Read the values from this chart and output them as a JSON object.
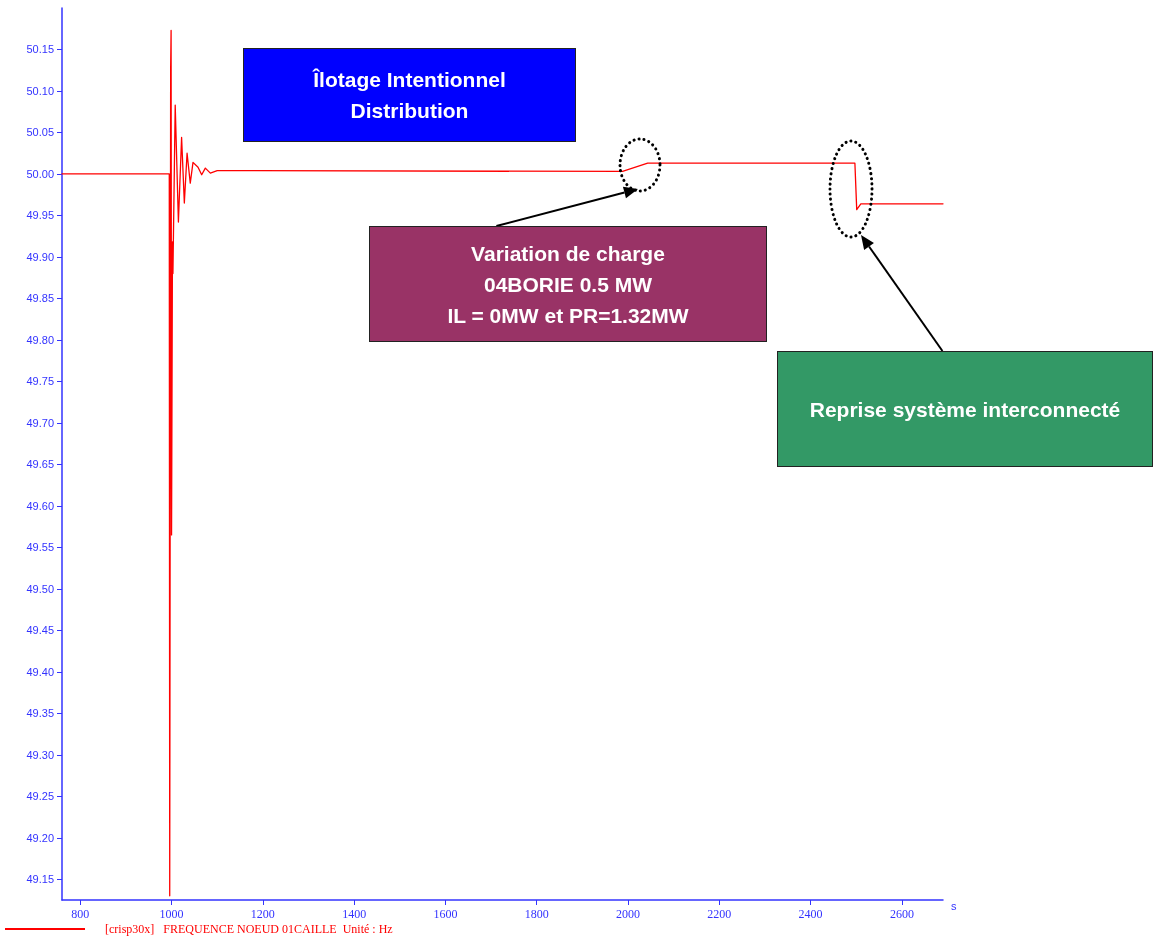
{
  "chart_data": {
    "type": "line",
    "xlabel": "s",
    "x": [
      760,
      995,
      996,
      998,
      999,
      1000,
      1002,
      1003,
      1008,
      1015,
      1022,
      1028,
      1034,
      1041,
      1047,
      1058,
      1066,
      1074,
      1085,
      1100,
      1130,
      1988,
      2043,
      2497,
      2501,
      2510,
      2690
    ],
    "series": [
      {
        "name": "[crisp30x]   FREQUENCE NOEUD 01CAILLE  Unité : Hz",
        "color": "#ff0000",
        "values": [
          50.0,
          50.0,
          49.13,
          50.125,
          50.173,
          49.565,
          49.918,
          49.88,
          50.083,
          49.942,
          50.044,
          49.965,
          50.025,
          49.989,
          50.014,
          50.008,
          49.999,
          50.007,
          50.001,
          50.004,
          50.004,
          50.003,
          50.013,
          50.013,
          49.957,
          49.964,
          49.964
        ]
      }
    ],
    "xlim": [
      760,
      2690
    ],
    "xticks": [
      800,
      1000,
      1200,
      1400,
      1600,
      1800,
      2000,
      2200,
      2400,
      2600
    ],
    "ylim": [
      49.125,
      50.2
    ],
    "yticks": [
      49.15,
      {
        "value": 49.2,
        "label": "49.20"
      },
      49.25,
      {
        "value": 49.3,
        "label": "49.30"
      },
      49.35,
      {
        "value": 49.4,
        "label": "49.40"
      },
      49.45,
      {
        "value": 49.5,
        "label": "49.50"
      },
      49.55,
      {
        "value": 49.6,
        "label": "49.60"
      },
      49.65,
      {
        "value": 49.7,
        "label": "49.70"
      },
      49.75,
      {
        "value": 49.8,
        "label": "49.80"
      },
      49.85,
      {
        "value": 49.9,
        "label": "49.90"
      },
      49.95,
      {
        "value": 50,
        "label": "50.00"
      },
      50.05,
      {
        "value": 50.1,
        "label": "50.10"
      },
      50.15
    ],
    "grid": false,
    "legend": "bottom left",
    "marker": "none",
    "line_style": "solid",
    "annotations": [
      "Îlotage Intentionnel\nDistribution",
      "Variation de charge\n04BORIE 0.5 MW\nIL = 0MW et PR=1.32MW",
      "Reprise système interconnecté"
    ]
  }
}
